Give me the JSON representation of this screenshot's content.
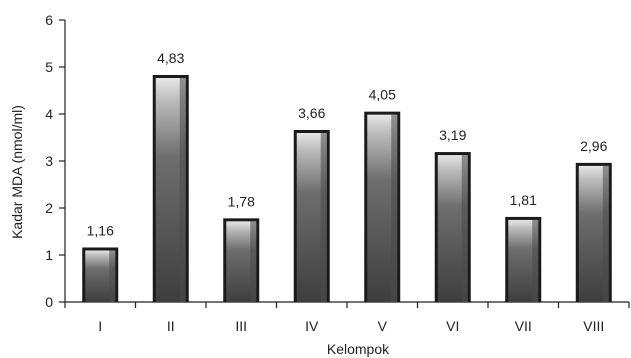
{
  "chart_data": {
    "type": "bar",
    "categories": [
      "I",
      "II",
      "III",
      "IV",
      "V",
      "VI",
      "VII",
      "VIII"
    ],
    "values": [
      1.16,
      4.83,
      1.78,
      3.66,
      4.05,
      3.19,
      1.81,
      2.96
    ],
    "data_labels": [
      "1,16",
      "4,83",
      "1,78",
      "3,66",
      "4,05",
      "3,19",
      "1,81",
      "2,96"
    ],
    "xlabel": "Kelompok",
    "ylabel": "Kadar MDA (nmol/ml)",
    "ylim": [
      0,
      6
    ],
    "yticks": [
      0,
      1,
      2,
      3,
      4,
      5,
      6
    ],
    "grid": false,
    "bar_color": "#4a4a4a",
    "bar_outline_color": "#1a1a1a"
  }
}
